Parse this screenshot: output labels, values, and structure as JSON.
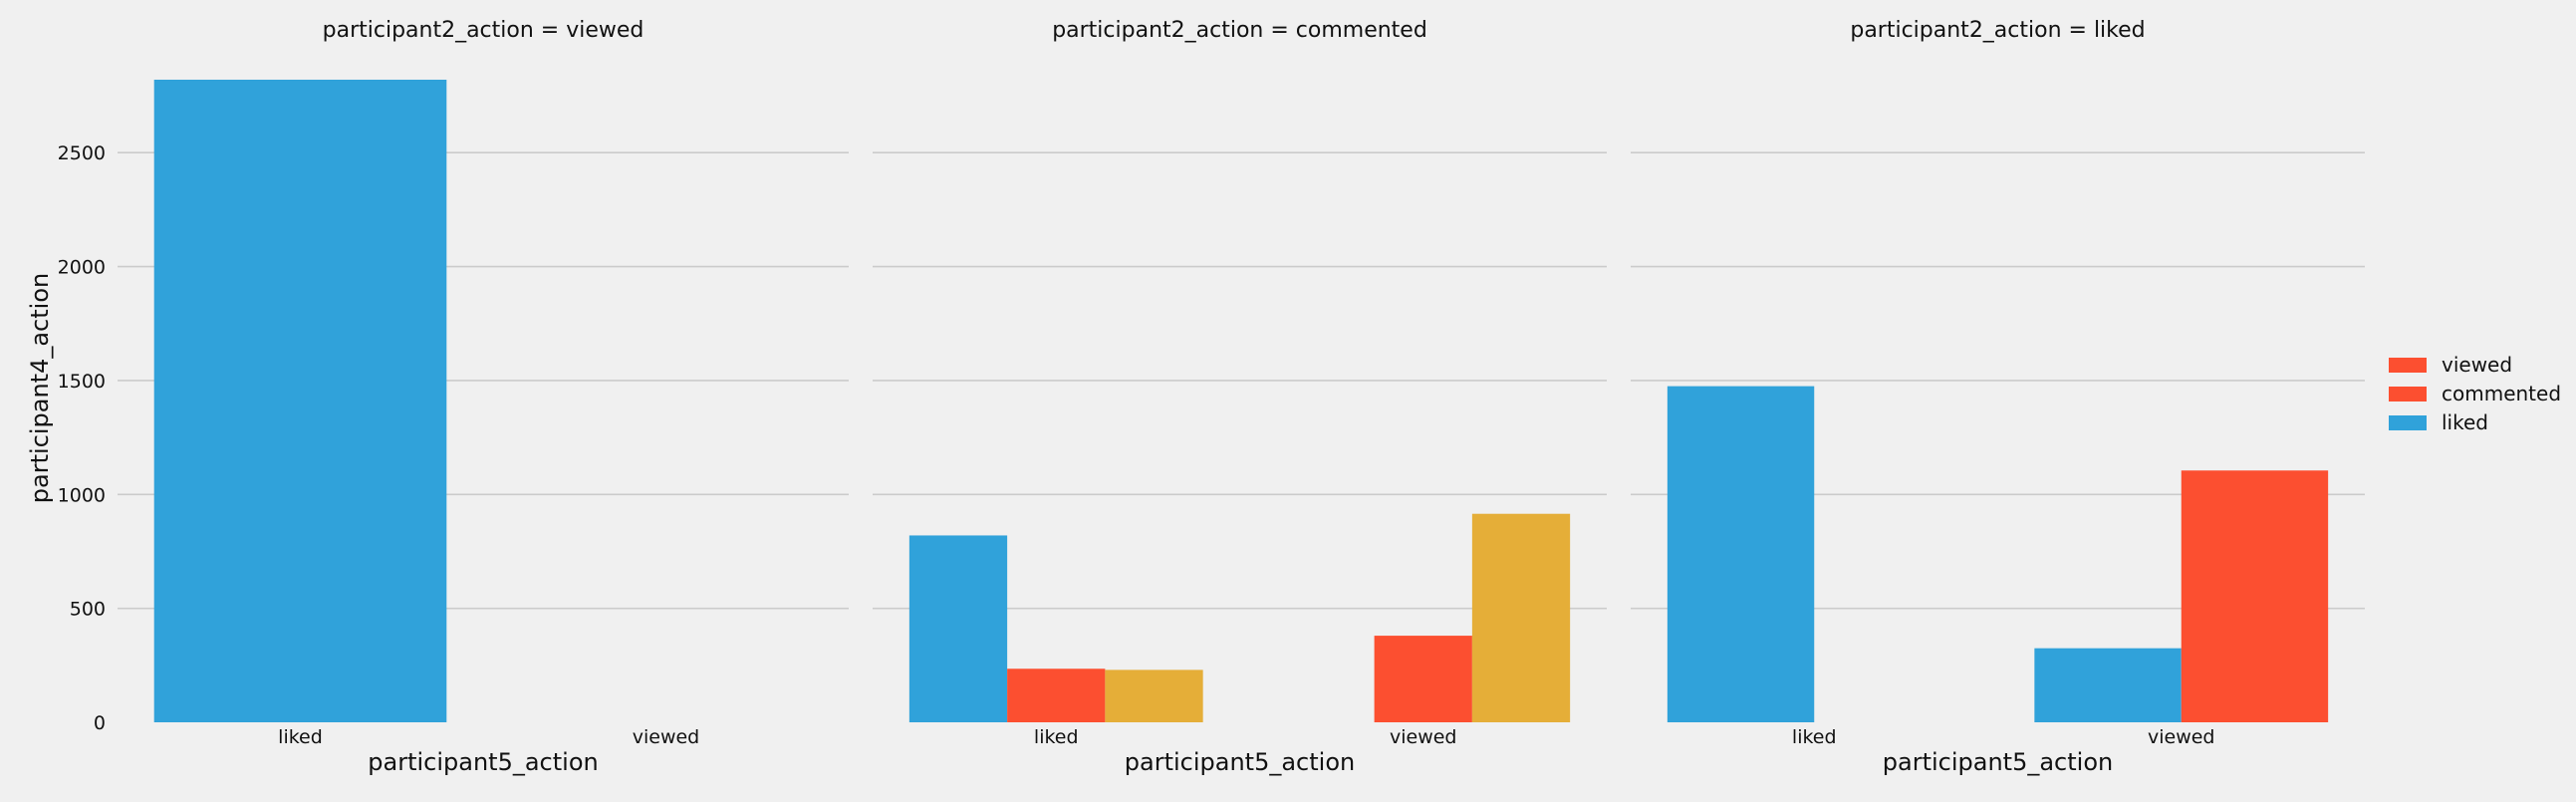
{
  "chart_data": [
    {
      "type": "bar",
      "title": "participant2_action = viewed",
      "xlabel": "participant5_action",
      "ylabel": "participant4_action",
      "categories": [
        "liked",
        "viewed"
      ],
      "series": [
        {
          "name": "liked",
          "color": "#30a2da",
          "values": [
            2820,
            0
          ]
        }
      ],
      "ylim": [
        0,
        2820
      ],
      "yticks": [
        0,
        500,
        1000,
        1500,
        2000,
        2500
      ],
      "grid": true
    },
    {
      "type": "bar",
      "title": "participant2_action = commented",
      "xlabel": "participant5_action",
      "ylabel": "",
      "categories": [
        "liked",
        "viewed"
      ],
      "series": [
        {
          "color": "#30a2da",
          "values": [
            820,
            0
          ]
        },
        {
          "color": "#fc4f30",
          "values": [
            235,
            380
          ]
        },
        {
          "color": "#e5ae38",
          "values": [
            230,
            915
          ]
        }
      ],
      "ylim": [
        0,
        2820
      ],
      "yticks": [
        0,
        500,
        1000,
        1500,
        2000,
        2500
      ],
      "grid": true
    },
    {
      "type": "bar",
      "title": "participant2_action = liked",
      "xlabel": "participant5_action",
      "ylabel": "",
      "categories": [
        "liked",
        "viewed"
      ],
      "series": [
        {
          "color": "#30a2da",
          "values": [
            1475,
            325
          ]
        },
        {
          "color": "#fc4f30",
          "values": [
            0,
            1105
          ]
        }
      ],
      "ylim": [
        0,
        2820
      ],
      "yticks": [
        0,
        500,
        1000,
        1500,
        2000,
        2500
      ],
      "grid": true
    }
  ],
  "legend": {
    "placement": "right",
    "items": [
      {
        "label": "viewed",
        "color": "#fc4f30"
      },
      {
        "label": "commented",
        "color": "#fc4f30"
      },
      {
        "label": "liked",
        "color": "#30a2da"
      }
    ]
  }
}
